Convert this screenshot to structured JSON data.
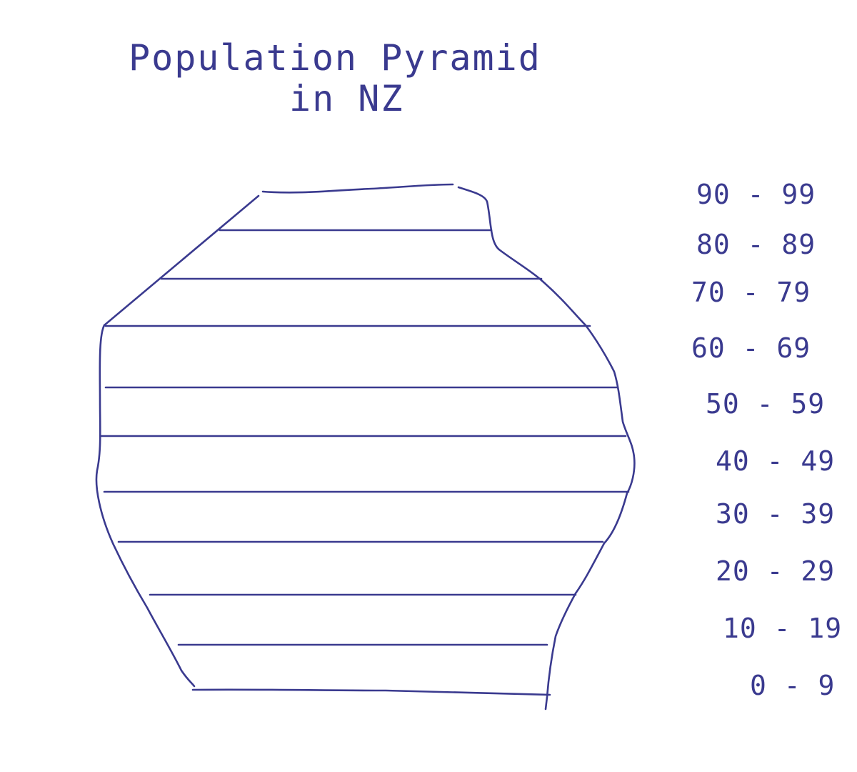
{
  "title": {
    "line1": "Population   Pyramid",
    "line2": "in   NZ"
  },
  "age_groups": [
    "90 - 99",
    "80 - 89",
    "70 - 79",
    "60 - 69",
    "50 - 59",
    "40 - 49",
    "30 - 39",
    "20 - 29",
    "10 - 19",
    "0 - 9"
  ],
  "colors": {
    "ink": "#3a3a8f",
    "background": "#ffffff"
  }
}
